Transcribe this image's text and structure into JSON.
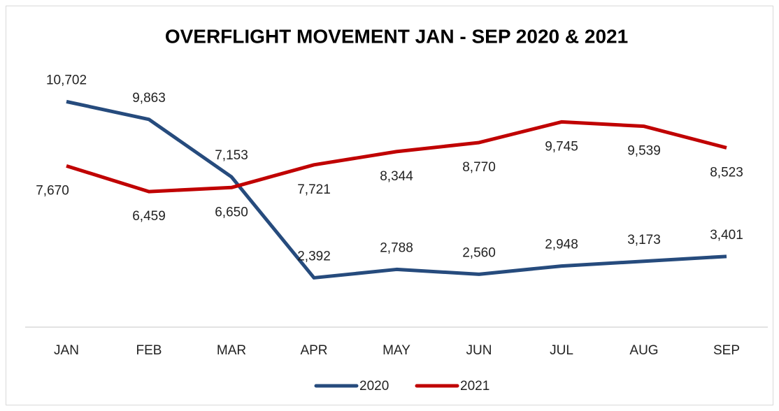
{
  "chart_data": {
    "type": "line",
    "title": "OVERFLIGHT MOVEMENT JAN - SEP 2020 & 2021",
    "categories": [
      "JAN",
      "FEB",
      "MAR",
      "APR",
      "MAY",
      "JUN",
      "JUL",
      "AUG",
      "SEP"
    ],
    "series": [
      {
        "name": "2020",
        "color": "#264b7d",
        "values": [
          10702,
          9863,
          7153,
          2392,
          2788,
          2560,
          2948,
          3173,
          3401
        ],
        "value_labels": [
          "10,702",
          "9,863",
          "7,153",
          "2,392",
          "2,788",
          "2,560",
          "2,948",
          "3,173",
          "3,401"
        ]
      },
      {
        "name": "2021",
        "color": "#c00000",
        "values": [
          7670,
          6459,
          6650,
          7721,
          8344,
          8770,
          9745,
          9539,
          8523
        ],
        "value_labels": [
          "7,670",
          "6,459",
          "6,650",
          "7,721",
          "8,344",
          "8,770",
          "9,745",
          "9,539",
          "8,523"
        ]
      }
    ],
    "ylim": [
      0,
      12000
    ],
    "legend": "bottom"
  }
}
